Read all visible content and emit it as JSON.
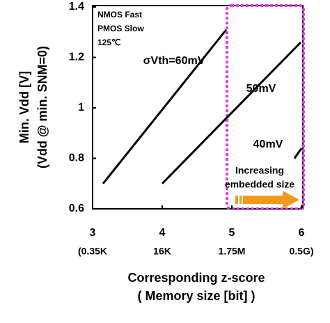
{
  "chart_data": {
    "type": "line",
    "x_label": [
      "Corresponding z-score",
      "( Memory size [bit] )"
    ],
    "y_label": [
      "Min. Vdd [V]",
      "(Vdd @ min. SNM=0)"
    ],
    "xlim": [
      3,
      6
    ],
    "ylim": [
      0.6,
      1.4
    ],
    "xticks": [
      3,
      4,
      5,
      6
    ],
    "xtick_sublabels": [
      "(0.35K",
      "16K",
      "1.75M",
      "0.5G)"
    ],
    "yticks": [
      0.6,
      0.8,
      1,
      1.2,
      1.4
    ],
    "series": [
      {
        "name": "σVth=60mV",
        "color": "#000000",
        "x": [
          3.15,
          4.92
        ],
        "values": [
          0.7,
          1.31
        ]
      },
      {
        "name": "50mV",
        "color": "#000000",
        "x": [
          4.0,
          5.99
        ],
        "values": [
          0.7,
          1.26
        ]
      },
      {
        "name": "40mV",
        "color": "#000000",
        "x": [
          5.9,
          6.0
        ],
        "values": [
          0.8,
          0.84
        ]
      }
    ],
    "annotations": [
      "NMOS Fast",
      "PMOS Slow",
      "125℃",
      "Increasing",
      "embedded size"
    ]
  }
}
